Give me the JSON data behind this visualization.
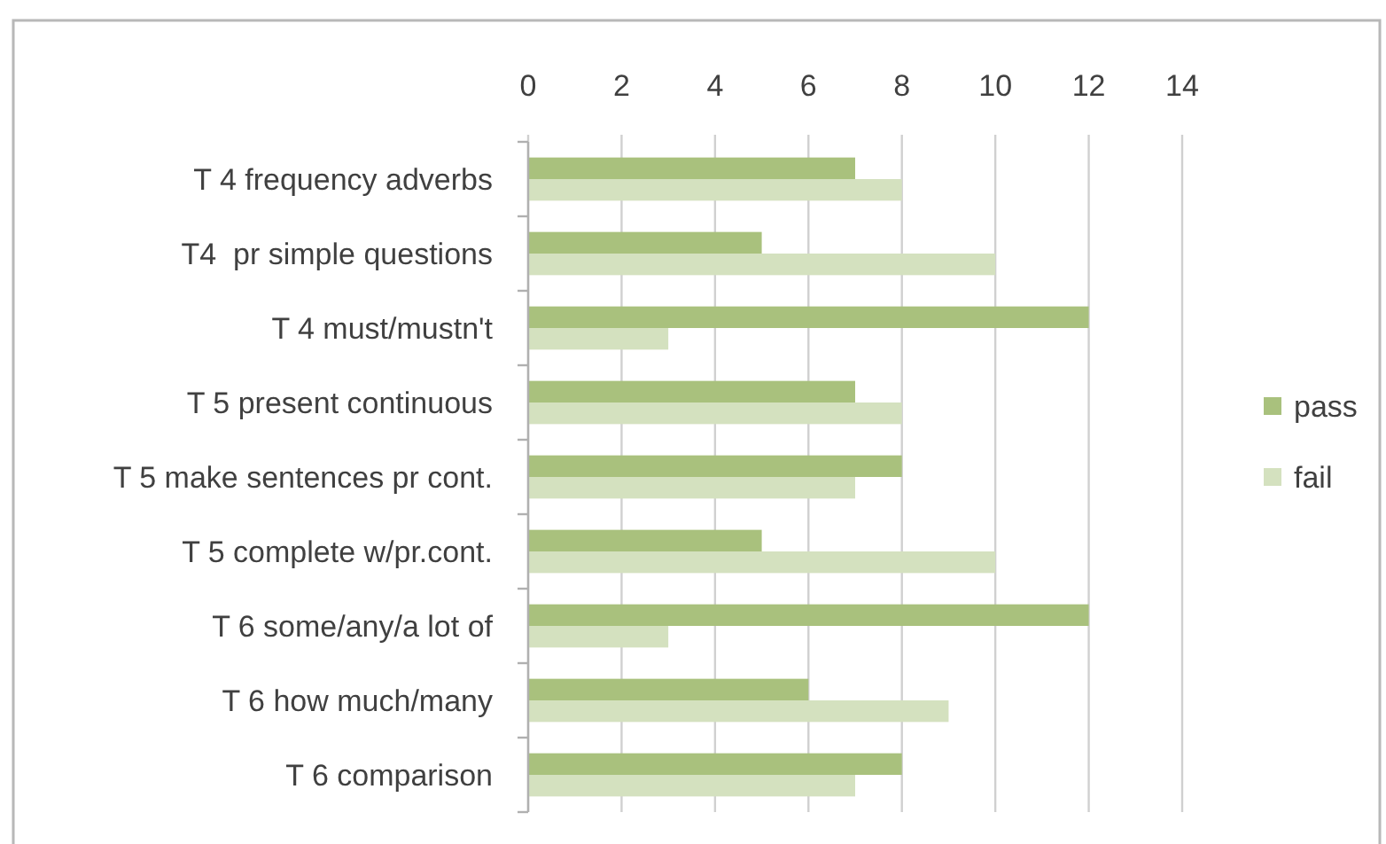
{
  "chart_data": {
    "type": "bar",
    "orientation": "horizontal",
    "categories": [
      "T 4 frequency adverbs",
      "T4  pr simple questions",
      "T 4 must/mustn't",
      "T 5 present continuous",
      "T 5 make sentences pr cont.",
      "T 5 complete w/pr.cont.",
      "T 6 some/any/a lot of",
      "T 6 how much/many",
      "T 6 comparison"
    ],
    "series": [
      {
        "name": "pass",
        "color": "#a9c17d",
        "values": [
          7,
          5,
          12,
          7,
          8,
          5,
          12,
          6,
          8
        ]
      },
      {
        "name": "fail",
        "color": "#d4e1bf",
        "values": [
          8,
          10,
          3,
          8,
          7,
          10,
          3,
          9,
          7
        ]
      }
    ],
    "xlim": [
      0,
      14
    ],
    "xticks": [
      0,
      2,
      4,
      6,
      8,
      10,
      12,
      14
    ],
    "grid": "x",
    "legend": "right"
  }
}
